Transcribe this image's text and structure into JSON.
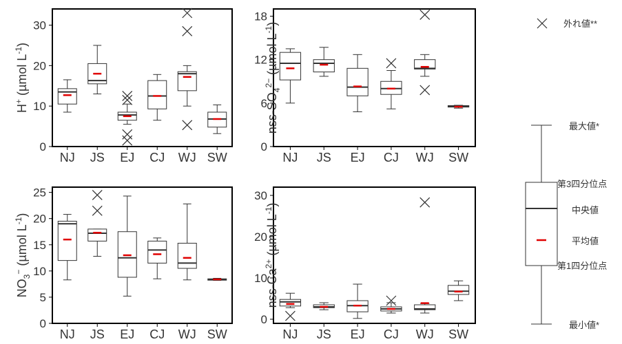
{
  "colors": {
    "mean": "#e00000",
    "box": "#333333",
    "median": "#333333"
  },
  "legend": {
    "outlier_label": "外れ値**",
    "max_label": "最大値*",
    "q3_label": "第3四分位点",
    "median_label": "中央値",
    "mean_label": "平均値",
    "q1_label": "第1四分位点",
    "min_label": "最小値*"
  },
  "chart_data": [
    {
      "type": "box",
      "ylabel_main": "H",
      "ylabel_sup": "+",
      "ylabel_unit": " (µmol L",
      "ylabel_unit_sup": "-1",
      "ylabel_tail": ")",
      "ylim": [
        0,
        34
      ],
      "yticks": [
        0,
        10,
        20,
        30
      ],
      "categories": [
        "NJ",
        "JS",
        "EJ",
        "CJ",
        "WJ",
        "SW"
      ],
      "boxes": [
        {
          "min": 8.5,
          "q1": 10.5,
          "median": 13.5,
          "q3": 14.3,
          "max": 16.5,
          "mean": 12.7,
          "outliers": []
        },
        {
          "min": 13.0,
          "q1": 15.5,
          "median": 16.3,
          "q3": 20.5,
          "max": 25.0,
          "mean": 18.0,
          "outliers": []
        },
        {
          "min": 5.5,
          "q1": 6.5,
          "median": 7.8,
          "q3": 8.5,
          "max": 10.5,
          "mean": 7.5,
          "outliers": [
            12.5,
            11.5,
            3.0,
            1.5
          ]
        },
        {
          "min": 6.5,
          "q1": 9.3,
          "median": 12.5,
          "q3": 16.3,
          "max": 17.8,
          "mean": 12.5,
          "outliers": []
        },
        {
          "min": 10.0,
          "q1": 13.8,
          "median": 18.0,
          "q3": 18.5,
          "max": 20.0,
          "mean": 17.2,
          "outliers": [
            33.0,
            28.5,
            5.3
          ]
        },
        {
          "min": 3.2,
          "q1": 4.8,
          "median": 6.8,
          "q3": 8.5,
          "max": 10.3,
          "mean": 6.8,
          "outliers": []
        }
      ]
    },
    {
      "type": "box",
      "ylabel_main": "nss-SO",
      "ylabel_sub": "4",
      "ylabel_sup": "2−",
      "ylabel_unit": " (µmol L",
      "ylabel_unit_sup": "-1",
      "ylabel_tail": ")",
      "ylim": [
        0,
        19
      ],
      "yticks": [
        0,
        6,
        12,
        18
      ],
      "categories": [
        "NJ",
        "JS",
        "EJ",
        "CJ",
        "WJ",
        "SW"
      ],
      "boxes": [
        {
          "min": 6.0,
          "q1": 9.2,
          "median": 11.5,
          "q3": 13.0,
          "max": 13.5,
          "mean": 10.8,
          "outliers": []
        },
        {
          "min": 9.7,
          "q1": 10.3,
          "median": 11.5,
          "q3": 12.0,
          "max": 13.7,
          "mean": 11.3,
          "outliers": []
        },
        {
          "min": 4.8,
          "q1": 7.0,
          "median": 8.2,
          "q3": 10.8,
          "max": 12.7,
          "mean": 8.3,
          "outliers": []
        },
        {
          "min": 5.2,
          "q1": 7.2,
          "median": 8.0,
          "q3": 9.0,
          "max": 10.5,
          "mean": 8.0,
          "outliers": [
            11.5
          ]
        },
        {
          "min": 9.7,
          "q1": 10.7,
          "median": 10.8,
          "q3": 12.0,
          "max": 12.7,
          "mean": 11.0,
          "outliers": [
            18.2,
            7.8
          ]
        },
        {
          "min": 5.3,
          "q1": 5.45,
          "median": 5.55,
          "q3": 5.65,
          "max": 5.7,
          "mean": 5.5,
          "outliers": []
        }
      ]
    },
    {
      "type": "box",
      "ylabel_main": "NO",
      "ylabel_sub": "3",
      "ylabel_sup": "−",
      "ylabel_unit": " (µmol L",
      "ylabel_unit_sup": "-1",
      "ylabel_tail": ")",
      "ylim": [
        0,
        26
      ],
      "yticks": [
        0,
        5,
        10,
        15,
        20,
        25
      ],
      "categories": [
        "NJ",
        "JS",
        "EJ",
        "CJ",
        "WJ",
        "SW"
      ],
      "boxes": [
        {
          "min": 8.3,
          "q1": 12.0,
          "median": 19.0,
          "q3": 19.5,
          "max": 20.8,
          "mean": 16.0,
          "outliers": []
        },
        {
          "min": 12.8,
          "q1": 15.7,
          "median": 17.2,
          "q3": 18.0,
          "max": 18.0,
          "mean": 17.3,
          "outliers": [
            24.5,
            21.5
          ]
        },
        {
          "min": 5.2,
          "q1": 8.8,
          "median": 12.5,
          "q3": 17.5,
          "max": 24.3,
          "mean": 13.0,
          "outliers": []
        },
        {
          "min": 8.5,
          "q1": 11.5,
          "median": 14.0,
          "q3": 15.7,
          "max": 16.3,
          "mean": 13.2,
          "outliers": []
        },
        {
          "min": 8.3,
          "q1": 10.5,
          "median": 11.5,
          "q3": 15.3,
          "max": 22.8,
          "mean": 12.5,
          "outliers": []
        },
        {
          "min": 8.2,
          "q1": 8.3,
          "median": 8.4,
          "q3": 8.5,
          "max": 8.6,
          "mean": 8.4,
          "outliers": []
        }
      ]
    },
    {
      "type": "box",
      "ylabel_main": "nss-Ca",
      "ylabel_sup": "2+",
      "ylabel_unit": " (µmol L",
      "ylabel_unit_sup": "-1",
      "ylabel_tail": ")",
      "ylim": [
        -1,
        32
      ],
      "yticks": [
        0,
        10,
        20,
        30
      ],
      "categories": [
        "NJ",
        "JS",
        "EJ",
        "CJ",
        "WJ",
        "SW"
      ],
      "boxes": [
        {
          "min": 2.8,
          "q1": 3.2,
          "median": 4.2,
          "q3": 4.8,
          "max": 6.3,
          "mean": 3.7,
          "outliers": [
            0.8
          ]
        },
        {
          "min": 2.3,
          "q1": 2.8,
          "median": 3.0,
          "q3": 3.5,
          "max": 4.0,
          "mean": 3.0,
          "outliers": []
        },
        {
          "min": 0.2,
          "q1": 1.8,
          "median": 3.3,
          "q3": 4.5,
          "max": 8.5,
          "mean": 3.3,
          "outliers": []
        },
        {
          "min": 1.5,
          "q1": 2.0,
          "median": 2.5,
          "q3": 3.0,
          "max": 4.0,
          "mean": 2.5,
          "outliers": [
            4.5
          ]
        },
        {
          "min": 1.5,
          "q1": 2.3,
          "median": 2.5,
          "q3": 3.5,
          "max": 3.8,
          "mean": 3.9,
          "outliers": [
            28.3
          ]
        },
        {
          "min": 4.5,
          "q1": 6.0,
          "median": 6.8,
          "q3": 8.2,
          "max": 9.3,
          "mean": 6.7,
          "outliers": []
        }
      ]
    }
  ]
}
